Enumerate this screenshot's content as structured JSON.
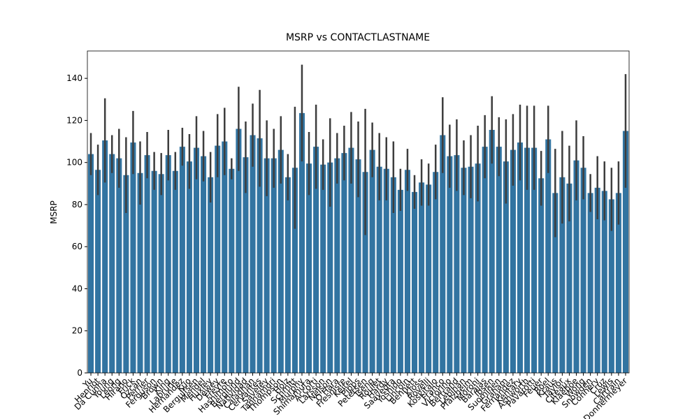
{
  "chart_data": {
    "type": "bar",
    "title": "MSRP vs CONTACTLASTNAME",
    "ylabel": "MSRP",
    "color": "#3274a1",
    "error_color": "#3d3d3d",
    "categories": [
      "Yu",
      "Henriot",
      "Da Cunha",
      "Young",
      "Leong",
      "Hirano",
      "Frick",
      "Ozcan",
      "Perrier",
      "Ferguson",
      "Brown",
      "King",
      "Labrune",
      "Hernandez",
      "Kuo",
      "Bergulfsen",
      "Mendel",
      "Huxley",
      "Dewey",
      "Freyre",
      "Hashimoto",
      "Berglund",
      "Natividad",
      "Calaghan",
      "Cervantes",
      "Saveley",
      "Tannamuri",
      "Thompson",
      "Holz",
      "Schmitt",
      "Murphy",
      "Shimamura",
      "Accorti",
      "Larsson",
      "Nelson",
      "O'Hara",
      "Fresnisre",
      "Keitel",
      "Pipps",
      "Petersen",
      "Tseng",
      "Roulet",
      "Hardy",
      "Saavedra",
      "Yoshido",
      "Lincoln",
      "Bennett",
      "Kloss",
      "Rovelli",
      "Koskitalo",
      "Franco",
      "Victorino",
      "Bertrand",
      "Lebihan",
      "Pfalzheim",
      "Moroni",
      "Barajas",
      "Ibsen",
      "Suominen",
      "Graham",
      "Fernandez",
      "Kentary",
      "Ashworth",
      "Pavarotti",
      "Feuer",
      "Roel",
      "Kraus",
      "Taylor",
      "Citeaux",
      "Klaeboe",
      "Wong",
      "Snowden",
      "Connery",
      "Cruz",
      "Lewis",
      "Cartrain",
      "Donnermeyer"
    ],
    "values": [
      104,
      96.5,
      110.5,
      104,
      102,
      94,
      109.5,
      95,
      103.5,
      96,
      94.5,
      103.5,
      96,
      107.5,
      100.5,
      107,
      103,
      93,
      108,
      110,
      97,
      116,
      102.5,
      113,
      111.5,
      102,
      102,
      106,
      93,
      97.5,
      123.5,
      99.5,
      107.5,
      99,
      100,
      102,
      104.5,
      107,
      101.5,
      95.5,
      106,
      98,
      97,
      93,
      87,
      96.5,
      86,
      90.5,
      89.5,
      95.5,
      113,
      103,
      103.5,
      97.5,
      98,
      99.5,
      107.5,
      115.5,
      107.5,
      100.5,
      106,
      109.5,
      107,
      107,
      92.5,
      111,
      85.5,
      93,
      90,
      101,
      97.5,
      85.5,
      88,
      86.5,
      82.5,
      85.5,
      115
    ],
    "errors": [
      10,
      12,
      20,
      9,
      14,
      18,
      15,
      15,
      11,
      9,
      10,
      12,
      9,
      9,
      13,
      15,
      12,
      12,
      15,
      16,
      5,
      20,
      17,
      15,
      23,
      18,
      14,
      16,
      11,
      29,
      23,
      15,
      20,
      12,
      21,
      12,
      13,
      17,
      18,
      30,
      13,
      16,
      15,
      17,
      10,
      10,
      8,
      11,
      10,
      13,
      18,
      15,
      17,
      13,
      15,
      18,
      15,
      16,
      14,
      20,
      17,
      18,
      20,
      20,
      13,
      16,
      21,
      22,
      18,
      19,
      15,
      9,
      15,
      14,
      15,
      15,
      27
    ],
    "ylim": [
      0,
      153
    ],
    "yticks": [
      0,
      20,
      40,
      60,
      80,
      100,
      120,
      140
    ]
  }
}
